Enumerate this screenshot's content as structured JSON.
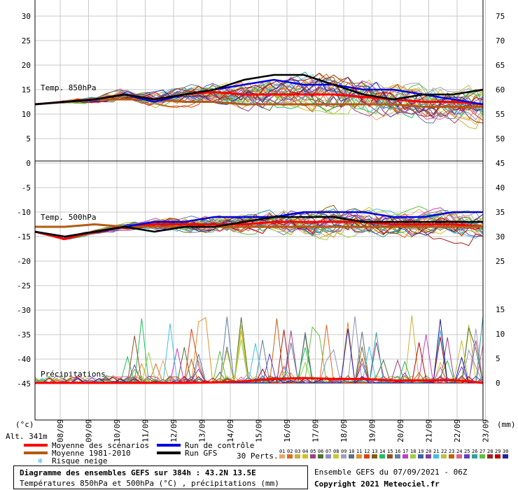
{
  "header": {
    "altitude": "Alt. 341m"
  },
  "axis": {
    "left_unit": "(°c)",
    "right_unit": "(mm)"
  },
  "panels": {
    "t850_label": "Temp. 850hPa",
    "t500_label": "Temp. 500hPa",
    "precip_label": "Précipitations"
  },
  "legend": {
    "items": [
      {
        "label": "Moyenne des scénarios",
        "color": "#ff0000"
      },
      {
        "label": "Moyenne 1981-2010",
        "color": "#b45a14"
      },
      {
        "label": "Risque neige",
        "color": "#4aa8ff"
      },
      {
        "label": "Run de contrôle",
        "color": "#0000e0"
      },
      {
        "label": "Run GFS",
        "color": "#000000"
      }
    ],
    "perts_label": "30 Perts.",
    "pert_numbers": [
      "01",
      "02",
      "03",
      "04",
      "05",
      "06",
      "07",
      "08",
      "09",
      "10",
      "11",
      "12",
      "13",
      "14",
      "15",
      "16",
      "17",
      "18",
      "19",
      "20",
      "21",
      "22",
      "23",
      "24",
      "25",
      "26",
      "27",
      "28",
      "29",
      "30"
    ],
    "pert_colors": [
      "#e6a86a",
      "#e06820",
      "#c8b040",
      "#d0c020",
      "#a04080",
      "#507030",
      "#9090c0",
      "#c8c830",
      "#a0a0c0",
      "#607080",
      "#e09030",
      "#e04010",
      "#806010",
      "#20c060",
      "#905020",
      "#6080a0",
      "#c040c0",
      "#a0d040",
      "#4060a0",
      "#8040a0",
      "#40c0e0",
      "#c0c040",
      "#c06010",
      "#e06090",
      "#6040c0",
      "#30a0a0",
      "#60c040",
      "#a02020",
      "#c00000",
      "#2020a0"
    ]
  },
  "footer": {
    "title": "Diagramme des ensembles GEFS sur 384h : 43.2N 13.5E",
    "subtitle": "Températures 850hPa et 500hPa (°C) , précipitations (mm)",
    "run": "Ensemble GEFS du 07/09/2021 - 06Z",
    "copyright": "Copyright 2021 Meteociel.fr"
  },
  "chart_data": {
    "type": "line",
    "x": [
      "08/09",
      "09/09",
      "10/09",
      "11/09",
      "12/09",
      "13/09",
      "14/09",
      "15/09",
      "16/09",
      "17/09",
      "18/09",
      "19/09",
      "20/09",
      "21/09",
      "22/09",
      "23/09"
    ],
    "y_left_ticks": [
      30,
      25,
      20,
      15,
      10,
      5,
      0,
      -5,
      -10,
      -15,
      -20,
      -25,
      -30,
      -35,
      -40,
      -45
    ],
    "y_right_ticks_temp": [
      75,
      70,
      65,
      60,
      55,
      50,
      45,
      40,
      35,
      30,
      25,
      20
    ],
    "y_right_ticks_precip": [
      15,
      10,
      5,
      0
    ],
    "grid": true,
    "series": [
      {
        "name": "Moyenne des scénarios",
        "panel": "t850",
        "values": [
          12,
          12.5,
          13,
          14,
          13,
          14,
          14.5,
          14,
          14,
          14,
          14,
          13.5,
          13,
          12.5,
          12.5,
          12
        ]
      },
      {
        "name": "Moyenne 1981-2010",
        "panel": "t850",
        "values": [
          12,
          12.5,
          13,
          13,
          13,
          12.5,
          12.5,
          12,
          12,
          12,
          12,
          12,
          12,
          11.5,
          11.5,
          11.5
        ]
      },
      {
        "name": "Run de contrôle",
        "panel": "t850",
        "values": [
          12,
          12.5,
          13,
          14,
          12.5,
          14,
          15,
          16,
          17,
          16,
          16,
          15,
          15,
          14,
          13,
          12
        ]
      },
      {
        "name": "Run GFS",
        "panel": "t850",
        "values": [
          12,
          12.5,
          13,
          14,
          13,
          14,
          15,
          17,
          18,
          18,
          16,
          14,
          13,
          14,
          14,
          15
        ]
      },
      {
        "name": "Moyenne des scénarios",
        "panel": "t500",
        "values": [
          -14,
          -15.5,
          -14,
          -13,
          -12.5,
          -12.5,
          -12.5,
          -12.5,
          -12,
          -12,
          -12,
          -12,
          -12.5,
          -12.5,
          -12.5,
          -13
        ]
      },
      {
        "name": "Moyenne 1981-2010",
        "panel": "t500",
        "values": [
          -13,
          -13,
          -12.5,
          -13,
          -13,
          -13,
          -13,
          -13,
          -13,
          -13,
          -13,
          -13,
          -13,
          -13,
          -13,
          -13
        ]
      },
      {
        "name": "Run de contrôle",
        "panel": "t500",
        "values": [
          -14,
          -15,
          -14,
          -13,
          -12,
          -12,
          -11,
          -11,
          -11,
          -10,
          -10,
          -10,
          -11,
          -11,
          -10,
          -10
        ]
      },
      {
        "name": "Run GFS",
        "panel": "t500",
        "values": [
          -14,
          -15,
          -14,
          -13,
          -14,
          -13,
          -13,
          -12,
          -11,
          -11,
          -11,
          -12,
          -12,
          -12,
          -12,
          -12
        ]
      },
      {
        "name": "Moyenne des scénarios",
        "panel": "precip",
        "values": [
          0,
          0,
          0,
          0,
          0,
          0,
          0.1,
          0.3,
          0.8,
          1,
          0.8,
          0.8,
          0.5,
          0.5,
          0.6,
          0
        ]
      }
    ]
  }
}
